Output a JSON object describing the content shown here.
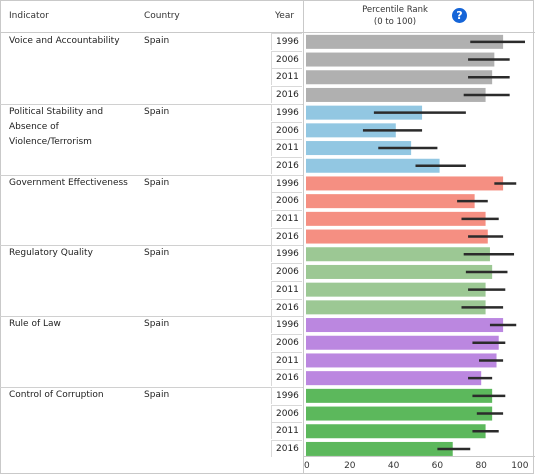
{
  "headers": {
    "indicator": "Indicator",
    "country": "Country",
    "year": "Year",
    "percentile_line1": "Percentile Rank",
    "percentile_line2": "(0 to 100)",
    "help": "?"
  },
  "chart_data": {
    "type": "bar",
    "orientation": "horizontal",
    "xlim": [
      0,
      100
    ],
    "x_ticks": [
      "0",
      "20",
      "40",
      "60",
      "80",
      "100"
    ],
    "grid": false,
    "groups": [
      {
        "indicator": "Voice and Accountability",
        "country": "Spain",
        "color": "#b0b0b0",
        "rows": [
          {
            "year": "1996",
            "value": 90,
            "low": 75,
            "high": 100
          },
          {
            "year": "2006",
            "value": 86,
            "low": 74,
            "high": 93
          },
          {
            "year": "2011",
            "value": 85,
            "low": 74,
            "high": 93
          },
          {
            "year": "2016",
            "value": 82,
            "low": 72,
            "high": 93
          }
        ]
      },
      {
        "indicator": "Political Stability and Absence of Violence/Terrorism",
        "country": "Spain",
        "color": "#92c7e2",
        "rows": [
          {
            "year": "1996",
            "value": 53,
            "low": 31,
            "high": 73
          },
          {
            "year": "2006",
            "value": 41,
            "low": 26,
            "high": 53
          },
          {
            "year": "2011",
            "value": 48,
            "low": 33,
            "high": 60
          },
          {
            "year": "2016",
            "value": 61,
            "low": 50,
            "high": 73
          }
        ]
      },
      {
        "indicator": "Government Effectiveness",
        "country": "Spain",
        "color": "#f58f82",
        "rows": [
          {
            "year": "1996",
            "value": 90,
            "low": 86,
            "high": 96
          },
          {
            "year": "2006",
            "value": 77,
            "low": 69,
            "high": 83
          },
          {
            "year": "2011",
            "value": 82,
            "low": 71,
            "high": 88
          },
          {
            "year": "2016",
            "value": 83,
            "low": 74,
            "high": 90
          }
        ]
      },
      {
        "indicator": "Regulatory Quality",
        "country": "Spain",
        "color": "#9cc894",
        "rows": [
          {
            "year": "1996",
            "value": 84,
            "low": 72,
            "high": 95
          },
          {
            "year": "2006",
            "value": 85,
            "low": 73,
            "high": 92
          },
          {
            "year": "2011",
            "value": 82,
            "low": 74,
            "high": 91
          },
          {
            "year": "2016",
            "value": 82,
            "low": 71,
            "high": 90
          }
        ]
      },
      {
        "indicator": "Rule of Law",
        "country": "Spain",
        "color": "#bb87e0",
        "rows": [
          {
            "year": "1996",
            "value": 90,
            "low": 84,
            "high": 96
          },
          {
            "year": "2006",
            "value": 88,
            "low": 76,
            "high": 91
          },
          {
            "year": "2011",
            "value": 87,
            "low": 79,
            "high": 90
          },
          {
            "year": "2016",
            "value": 80,
            "low": 74,
            "high": 85
          }
        ]
      },
      {
        "indicator": "Control of Corruption",
        "country": "Spain",
        "color": "#5cb85c",
        "rows": [
          {
            "year": "1996",
            "value": 85,
            "low": 76,
            "high": 91
          },
          {
            "year": "2006",
            "value": 85,
            "low": 78,
            "high": 90
          },
          {
            "year": "2011",
            "value": 82,
            "low": 76,
            "high": 88
          },
          {
            "year": "2016",
            "value": 67,
            "low": 60,
            "high": 75
          }
        ]
      }
    ]
  }
}
